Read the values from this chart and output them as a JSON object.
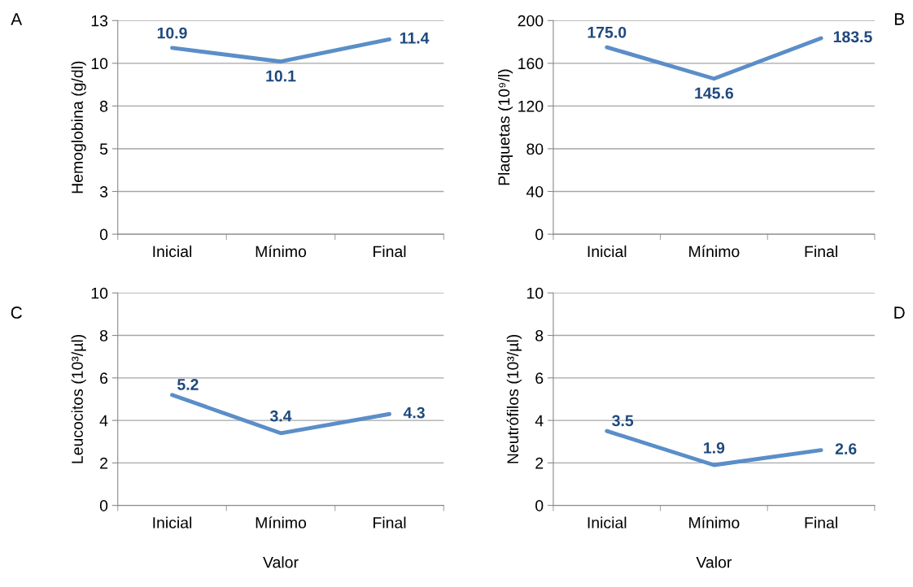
{
  "chart_data": [
    {
      "type": "line",
      "ylabel": "Hemoglobina (g/dl)",
      "annotations": [
        "A"
      ],
      "categories": [
        "Inicial",
        "Mínimo",
        "Final"
      ],
      "series": [
        {
          "color": "#5b8ec8",
          "values": [
            10.9,
            10.1,
            11.4
          ],
          "value_labels": [
            "10.9",
            "10.1",
            "11.4"
          ]
        }
      ],
      "ylim": [
        0,
        12.5
      ],
      "yticks": [
        0,
        {
          "value": 2.5,
          "label": "3"
        },
        5,
        {
          "value": 7.5,
          "label": "8"
        },
        10,
        {
          "value": 12.5,
          "label": "13"
        }
      ],
      "grid": "y",
      "marker": "none",
      "line_style": "solid",
      "legend": false
    },
    {
      "type": "line",
      "ylabel": "Plaquetas (10⁹/l)",
      "annotations": [
        "B"
      ],
      "categories": [
        "Inicial",
        "Mínimo",
        "Final"
      ],
      "series": [
        {
          "color": "#5b8ec8",
          "values": [
            175.0,
            145.6,
            183.5
          ],
          "value_labels": [
            "175.0",
            "145.6",
            "183.5"
          ]
        }
      ],
      "ylim": [
        0,
        200
      ],
      "yticks": [
        0,
        40,
        80,
        120,
        160,
        200
      ],
      "grid": "y",
      "marker": "none",
      "line_style": "solid",
      "legend": false
    },
    {
      "type": "line",
      "ylabel": "Leucocitos (10³/µl)",
      "xlabel": "Valor",
      "annotations": [
        "C"
      ],
      "categories": [
        "Inicial",
        "Mínimo",
        "Final"
      ],
      "series": [
        {
          "color": "#5b8ec8",
          "values": [
            5.2,
            3.4,
            4.3
          ],
          "value_labels": [
            "5.2",
            "3.4",
            "4.3"
          ]
        }
      ],
      "ylim": [
        0,
        10
      ],
      "yticks": [
        0,
        2,
        4,
        6,
        8,
        10
      ],
      "grid": "y",
      "marker": "none",
      "line_style": "solid",
      "legend": false
    },
    {
      "type": "line",
      "ylabel": "Neutrófilos (10³/µl)",
      "xlabel": "Valor",
      "annotations": [
        "D"
      ],
      "categories": [
        "Inicial",
        "Mínimo",
        "Final"
      ],
      "series": [
        {
          "color": "#5b8ec8",
          "values": [
            3.5,
            1.9,
            2.6
          ],
          "value_labels": [
            "3.5",
            "1.9",
            "2.6"
          ]
        }
      ],
      "ylim": [
        0,
        10
      ],
      "yticks": [
        0,
        2,
        4,
        6,
        8,
        10
      ],
      "grid": "y",
      "marker": "none",
      "line_style": "solid",
      "legend": false
    }
  ]
}
